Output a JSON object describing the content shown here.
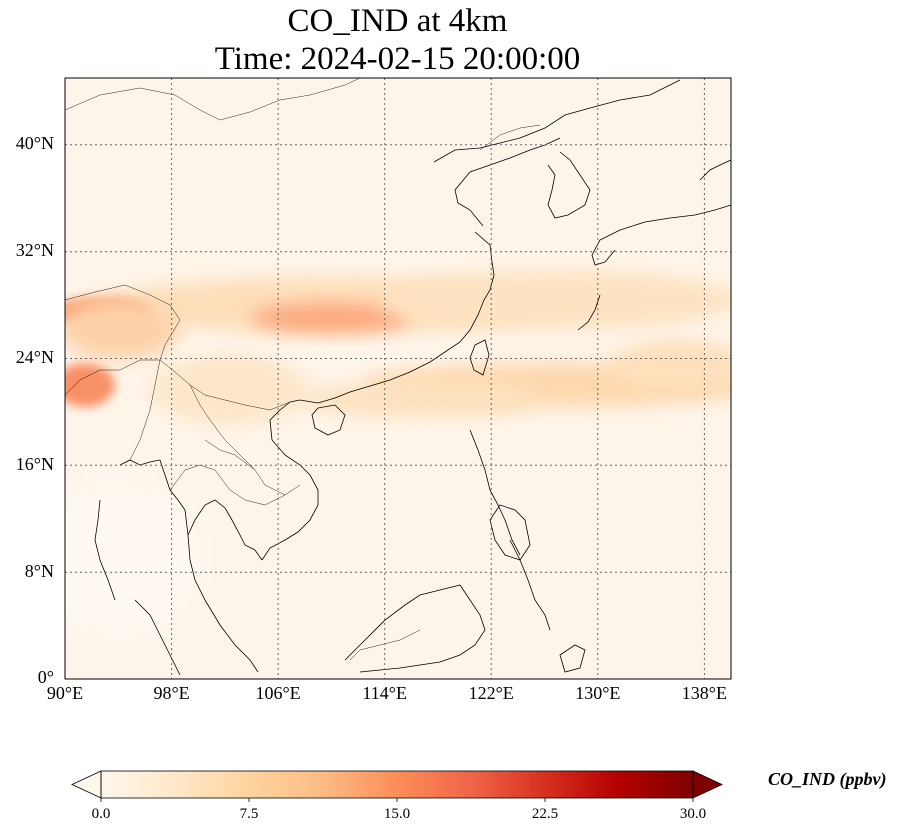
{
  "title": {
    "line1": "CO_IND at 4km",
    "line2": "Time: 2024-02-15 20:00:00"
  },
  "map": {
    "lon_range": [
      90,
      140
    ],
    "lat_range": [
      0,
      45
    ],
    "xticks": [
      "90°E",
      "98°E",
      "106°E",
      "114°E",
      "122°E",
      "130°E",
      "138°E"
    ],
    "yticks": [
      "0°",
      "8°N",
      "16°N",
      "24°N",
      "32°N",
      "40°N"
    ],
    "gridlines": "dotted",
    "field_colormap": "OrRd",
    "features": [
      "coastlines",
      "country borders"
    ]
  },
  "colorbar": {
    "label": "CO_IND (ppbv)",
    "ticks": [
      "0.0",
      "7.5",
      "15.0",
      "22.5",
      "30.0"
    ],
    "range": [
      0,
      30
    ],
    "extend": "both",
    "colors": [
      "#fff7ec",
      "#fee8c8",
      "#fdd49e",
      "#fdbb84",
      "#fc8d59",
      "#ef6548",
      "#d7301f",
      "#b30000",
      "#7f0000"
    ]
  }
}
